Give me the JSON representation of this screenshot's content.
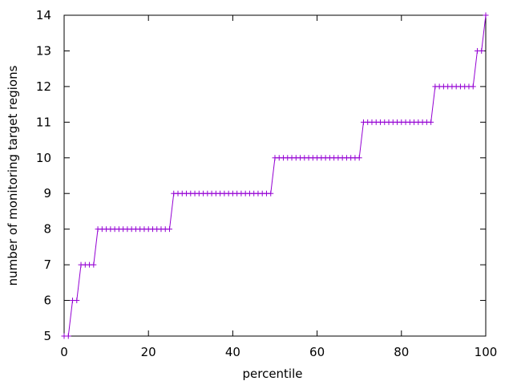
{
  "chart_data": {
    "type": "line",
    "xlabel": "percentile",
    "ylabel": "number of monitoring target regions",
    "xlim": [
      0,
      100
    ],
    "ylim": [
      5,
      14
    ],
    "xticks": [
      0,
      20,
      40,
      60,
      80,
      100
    ],
    "yticks": [
      5,
      6,
      7,
      8,
      9,
      10,
      11,
      12,
      13,
      14
    ],
    "grid": false,
    "legend": "none",
    "marker": "plus",
    "line_color": "#9400d3",
    "series": [
      {
        "x": [
          0,
          1,
          2,
          3,
          4,
          5,
          6,
          7,
          8,
          9,
          10,
          11,
          12,
          13,
          14,
          15,
          16,
          17,
          18,
          19,
          20,
          21,
          22,
          23,
          24,
          25,
          26,
          27,
          28,
          29,
          30,
          31,
          32,
          33,
          34,
          35,
          36,
          37,
          38,
          39,
          40,
          41,
          42,
          43,
          44,
          45,
          46,
          47,
          48,
          49,
          50,
          51,
          52,
          53,
          54,
          55,
          56,
          57,
          58,
          59,
          60,
          61,
          62,
          63,
          64,
          65,
          66,
          67,
          68,
          69,
          70,
          71,
          72,
          73,
          74,
          75,
          76,
          77,
          78,
          79,
          80,
          81,
          82,
          83,
          84,
          85,
          86,
          87,
          88,
          89,
          90,
          91,
          92,
          93,
          94,
          95,
          96,
          97,
          98,
          99,
          100
        ],
        "y": [
          5,
          5,
          6,
          6,
          7,
          7,
          7,
          7,
          8,
          8,
          8,
          8,
          8,
          8,
          8,
          8,
          8,
          8,
          8,
          8,
          8,
          8,
          8,
          8,
          8,
          8,
          9,
          9,
          9,
          9,
          9,
          9,
          9,
          9,
          9,
          9,
          9,
          9,
          9,
          9,
          9,
          9,
          9,
          9,
          9,
          9,
          9,
          9,
          9,
          9,
          10,
          10,
          10,
          10,
          10,
          10,
          10,
          10,
          10,
          10,
          10,
          10,
          10,
          10,
          10,
          10,
          10,
          10,
          10,
          10,
          10,
          11,
          11,
          11,
          11,
          11,
          11,
          11,
          11,
          11,
          11,
          11,
          11,
          11,
          11,
          11,
          11,
          11,
          12,
          12,
          12,
          12,
          12,
          12,
          12,
          12,
          12,
          12,
          13,
          13,
          14
        ]
      }
    ]
  }
}
